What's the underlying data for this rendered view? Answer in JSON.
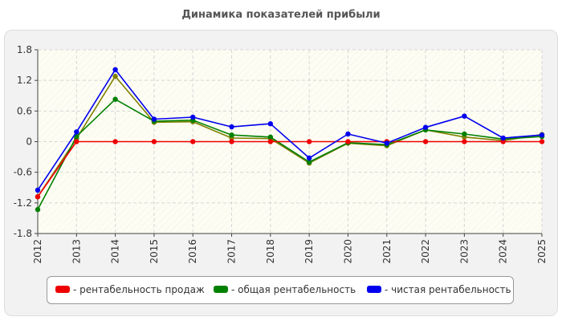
{
  "chart_data": {
    "type": "line",
    "title": "Динамика показателей прибыли",
    "categories": [
      "2012",
      "2013",
      "2014",
      "2015",
      "2016",
      "2017",
      "2018",
      "2019",
      "2020",
      "2021",
      "2022",
      "2023",
      "2024",
      "2025"
    ],
    "ylim": [
      -1.8,
      1.8
    ],
    "yticks": [
      "1.8",
      "1.2",
      "0.6",
      "0",
      "-0.6",
      "-1.2",
      "-1.8"
    ],
    "grid": true,
    "legend_position": "bottom",
    "series": [
      {
        "name": "рентабельность продаж",
        "color": "#ee0000",
        "values": [
          -1.08,
          0,
          0,
          0,
          0,
          0,
          0,
          0,
          0,
          0,
          0,
          0,
          0,
          0
        ]
      },
      {
        "name": "общая рентабельность",
        "color": "#008000",
        "values": [
          -1.33,
          0.1,
          0.83,
          0.4,
          0.42,
          0.13,
          0.09,
          -0.4,
          -0.02,
          -0.06,
          0.23,
          0.15,
          0.05,
          0.1
        ]
      },
      {
        "name": "чистая рентабельность",
        "color": "#0000ee",
        "values": [
          -0.95,
          0.19,
          1.41,
          0.44,
          0.48,
          0.29,
          0.35,
          -0.32,
          0.15,
          -0.03,
          0.28,
          0.5,
          0.07,
          0.13
        ]
      },
      {
        "name": "",
        "color": "#808000",
        "values": [
          -1.08,
          0.06,
          1.28,
          0.38,
          0.39,
          0.07,
          0.06,
          -0.42,
          -0.03,
          -0.08,
          0.23,
          0.09,
          0.02,
          0.14
        ]
      }
    ]
  }
}
